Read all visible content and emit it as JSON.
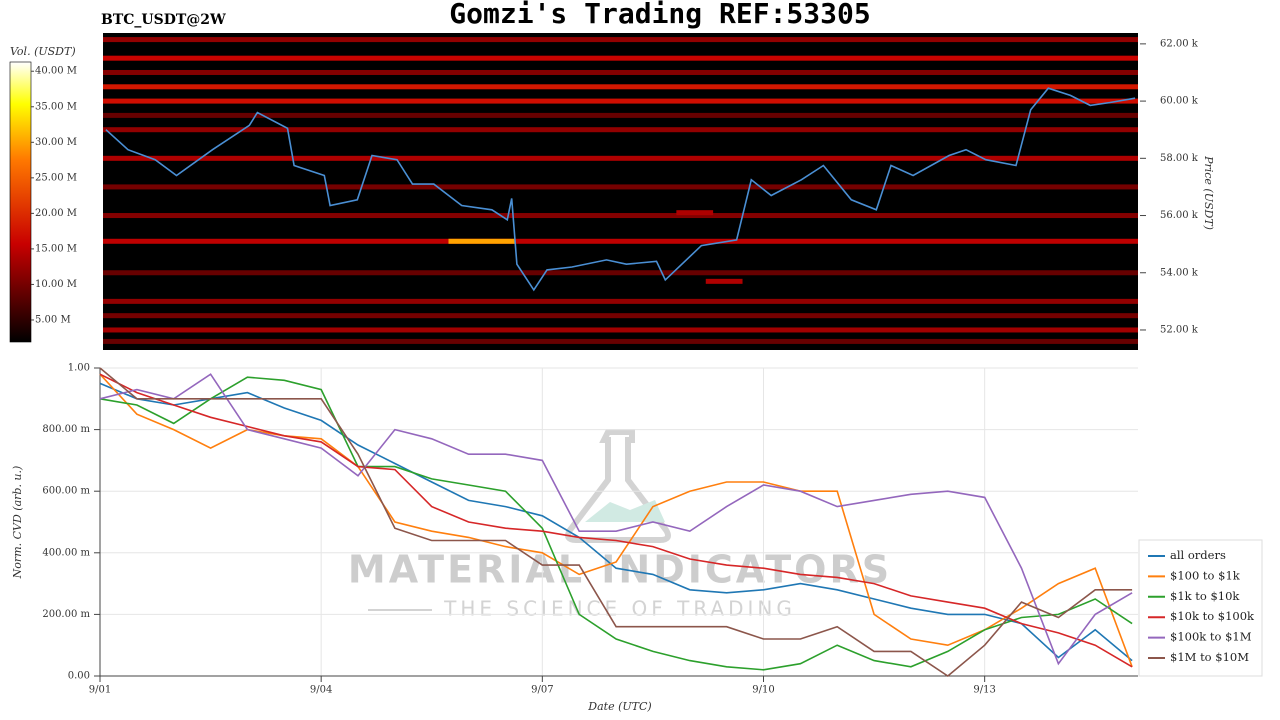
{
  "chart_data": [
    {
      "type": "heatmap",
      "title": "Gomzi's Trading REF:53305",
      "symbol": "BTC_USDT@2W",
      "colorbar_label": "Vol. (USDT)",
      "zlim": [
        1900000,
        41300000
      ],
      "cticks": [
        {
          "value": 5000000,
          "label": "5.00 M"
        },
        {
          "value": 10000000,
          "label": "10.00 M"
        },
        {
          "value": 15000000,
          "label": "15.00 M"
        },
        {
          "value": 20000000,
          "label": "20.00 M"
        },
        {
          "value": 25000000,
          "label": "25.00 M"
        },
        {
          "value": 30000000,
          "label": "30.00 M"
        },
        {
          "value": 35000000,
          "label": "35.00 M"
        },
        {
          "value": 40000000,
          "label": "40.00 M"
        }
      ],
      "y2label": "Price (USDT)",
      "y2lim": [
        51300,
        62380
      ],
      "y2ticks": [
        {
          "value": 52000,
          "label": "52.00 k"
        },
        {
          "value": 54000,
          "label": "54.00 k"
        },
        {
          "value": 56000,
          "label": "56.00 k"
        },
        {
          "value": 58000,
          "label": "58.00 k"
        },
        {
          "value": 60000,
          "label": "60.00 k"
        },
        {
          "value": 62000,
          "label": "62.00 k"
        }
      ],
      "xlim": [
        0,
        14.08
      ],
      "levels": [
        62150,
        61500,
        61000,
        60500,
        60000,
        59500,
        59000,
        58000,
        57000,
        56000,
        55100,
        54000,
        53000,
        52500,
        52000,
        51600
      ],
      "level_volumes": [
        12000000,
        16000000,
        11000000,
        18000000,
        17000000,
        9000000,
        12000000,
        14000000,
        10000000,
        11000000,
        15000000,
        9000000,
        12000000,
        10000000,
        13000000,
        9000000
      ],
      "hot_spots": [
        {
          "price": 55100,
          "start": 4.7,
          "end": 5.6,
          "volume": 30000000
        },
        {
          "price": 56100,
          "start": 7.8,
          "end": 8.3,
          "volume": 14000000
        },
        {
          "price": 53700,
          "start": 8.2,
          "end": 8.7,
          "volume": 14000000
        }
      ],
      "price": {
        "color": "#4a8fd4",
        "x": [
          0.04,
          0.34,
          0.71,
          1.0,
          1.49,
          1.99,
          2.1,
          2.51,
          2.6,
          3.01,
          3.09,
          3.46,
          3.66,
          4.0,
          4.21,
          4.5,
          4.88,
          5.29,
          5.5,
          5.56,
          5.63,
          5.86,
          6.04,
          6.38,
          6.85,
          7.12,
          7.53,
          7.65,
          8.14,
          8.62,
          8.82,
          9.09,
          9.5,
          9.8,
          10.18,
          10.52,
          10.72,
          11.02,
          11.51,
          11.74,
          12.01,
          12.42,
          12.62,
          12.86,
          13.16,
          13.43,
          13.7,
          14.04
        ],
        "values": [
          59000,
          58300,
          57950,
          57400,
          58300,
          59150,
          59600,
          59050,
          57750,
          57400,
          56350,
          56550,
          58100,
          57950,
          57100,
          57100,
          56350,
          56200,
          55850,
          56600,
          54300,
          53400,
          54100,
          54200,
          54450,
          54300,
          54400,
          53750,
          54950,
          55150,
          57250,
          56700,
          57250,
          57750,
          56550,
          56200,
          57750,
          57400,
          58100,
          58300,
          57950,
          57750,
          59700,
          60450,
          60200,
          59850,
          59950,
          60100
        ]
      }
    },
    {
      "type": "line",
      "xlabel": "Date (UTC)",
      "ylabel": "Norm. CVD (arb. u.)",
      "xlim": [
        0,
        14.08
      ],
      "xticks": [
        {
          "value": 0,
          "label": "9/01"
        },
        {
          "value": 3,
          "label": "9/04"
        },
        {
          "value": 6,
          "label": "9/07"
        },
        {
          "value": 9,
          "label": "9/10"
        },
        {
          "value": 12,
          "label": "9/13"
        }
      ],
      "ylim": [
        0,
        1
      ],
      "yticks": [
        {
          "value": 0,
          "label": "0.00"
        },
        {
          "value": 0.2,
          "label": "200.00 m"
        },
        {
          "value": 0.4,
          "label": "400.00 m"
        },
        {
          "value": 0.6,
          "label": "600.00 m"
        },
        {
          "value": 0.8,
          "label": "800.00 m"
        },
        {
          "value": 1,
          "label": "1.00"
        }
      ],
      "grid": true,
      "legend": "right",
      "x": [
        0,
        0.5,
        1,
        1.5,
        2,
        2.5,
        3,
        3.5,
        4,
        4.5,
        5,
        5.5,
        6,
        6.5,
        7,
        7.5,
        8,
        8.5,
        9,
        9.5,
        10,
        10.5,
        11,
        11.5,
        12,
        12.5,
        13,
        13.5,
        14
      ],
      "series": [
        {
          "name": "all orders",
          "color": "#1f77b4",
          "values": [
            0.95,
            0.9,
            0.88,
            0.9,
            0.92,
            0.87,
            0.83,
            0.75,
            0.69,
            0.63,
            0.57,
            0.55,
            0.52,
            0.45,
            0.35,
            0.33,
            0.28,
            0.27,
            0.28,
            0.3,
            0.28,
            0.25,
            0.22,
            0.2,
            0.2,
            0.17,
            0.06,
            0.15,
            0.05
          ]
        },
        {
          "name": "$100 to $1k",
          "color": "#ff7f0e",
          "values": [
            0.98,
            0.85,
            0.8,
            0.74,
            0.8,
            0.78,
            0.77,
            0.68,
            0.5,
            0.47,
            0.45,
            0.42,
            0.4,
            0.33,
            0.37,
            0.55,
            0.6,
            0.63,
            0.63,
            0.6,
            0.6,
            0.2,
            0.12,
            0.1,
            0.15,
            0.22,
            0.3,
            0.35,
            0.03
          ]
        },
        {
          "name": "$1k to $10k",
          "color": "#2ca02c",
          "values": [
            0.9,
            0.88,
            0.82,
            0.9,
            0.97,
            0.96,
            0.93,
            0.68,
            0.68,
            0.64,
            0.62,
            0.6,
            0.48,
            0.2,
            0.12,
            0.08,
            0.05,
            0.03,
            0.02,
            0.04,
            0.1,
            0.05,
            0.03,
            0.08,
            0.15,
            0.19,
            0.2,
            0.25,
            0.17
          ]
        },
        {
          "name": "$10k to $100k",
          "color": "#d62728",
          "values": [
            0.98,
            0.92,
            0.88,
            0.84,
            0.81,
            0.78,
            0.76,
            0.68,
            0.67,
            0.55,
            0.5,
            0.48,
            0.47,
            0.45,
            0.44,
            0.42,
            0.38,
            0.36,
            0.35,
            0.33,
            0.32,
            0.3,
            0.26,
            0.24,
            0.22,
            0.17,
            0.14,
            0.1,
            0.03
          ]
        },
        {
          "name": "$100k to $1M",
          "color": "#9467bd",
          "values": [
            0.9,
            0.93,
            0.9,
            0.98,
            0.8,
            0.77,
            0.74,
            0.65,
            0.8,
            0.77,
            0.72,
            0.72,
            0.7,
            0.47,
            0.47,
            0.5,
            0.47,
            0.55,
            0.62,
            0.6,
            0.55,
            0.57,
            0.59,
            0.6,
            0.58,
            0.35,
            0.04,
            0.2,
            0.27
          ]
        },
        {
          "name": "$1M to $10M",
          "color": "#8c564b",
          "values": [
            1.0,
            0.9,
            0.9,
            0.9,
            0.9,
            0.9,
            0.9,
            0.72,
            0.48,
            0.44,
            0.44,
            0.44,
            0.36,
            0.36,
            0.16,
            0.16,
            0.16,
            0.16,
            0.12,
            0.12,
            0.16,
            0.08,
            0.08,
            0.0,
            0.1,
            0.24,
            0.19,
            0.28,
            0.28
          ]
        }
      ]
    }
  ],
  "watermark": {
    "title": "MATERIAL INDICATORS",
    "subtitle": "THE SCIENCE OF TRADING"
  }
}
